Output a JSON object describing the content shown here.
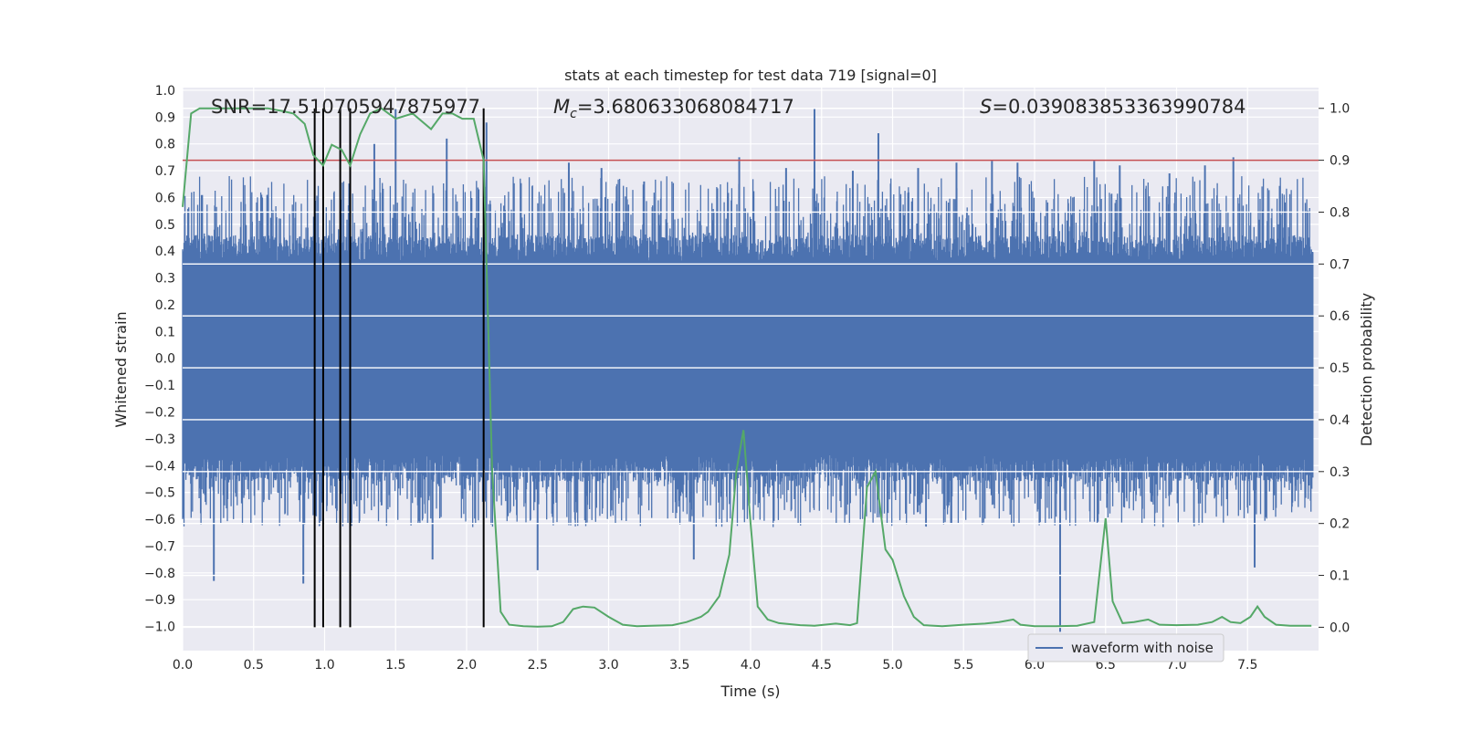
{
  "chart_data": {
    "type": "line",
    "title": "stats at each timestep for test data 719 [signal=0]",
    "xlabel": "Time (s)",
    "ylabel_left": "Whitened strain",
    "ylabel_right": "Detection probability",
    "xlim": [
      0.0,
      8.0
    ],
    "ylim_left": [
      -1.09,
      1.01
    ],
    "ylim_right": [
      -0.045,
      1.04
    ],
    "xticks": [
      "0.0",
      "0.5",
      "1.0",
      "1.5",
      "2.0",
      "2.5",
      "3.0",
      "3.5",
      "4.0",
      "4.5",
      "5.0",
      "5.5",
      "6.0",
      "6.5",
      "7.0",
      "7.5"
    ],
    "xtick_values": [
      0.0,
      0.5,
      1.0,
      1.5,
      2.0,
      2.5,
      3.0,
      3.5,
      4.0,
      4.5,
      5.0,
      5.5,
      6.0,
      6.5,
      7.0,
      7.5
    ],
    "yticks_left": [
      "1.0",
      "0.9",
      "0.8",
      "0.7",
      "0.6",
      "0.5",
      "0.4",
      "0.3",
      "0.2",
      "0.1",
      "0.0",
      "−0.1",
      "−0.2",
      "−0.3",
      "−0.4",
      "−0.5",
      "−0.6",
      "−0.7",
      "−0.8",
      "−0.9",
      "−1.0"
    ],
    "ytick_values_left": [
      1.0,
      0.9,
      0.8,
      0.7,
      0.6,
      0.5,
      0.4,
      0.3,
      0.2,
      0.1,
      0.0,
      -0.1,
      -0.2,
      -0.3,
      -0.4,
      -0.5,
      -0.6,
      -0.7,
      -0.8,
      -0.9,
      -1.0
    ],
    "yticks_right": [
      "1.0",
      "0.9",
      "0.8",
      "0.7",
      "0.6",
      "0.5",
      "0.4",
      "0.3",
      "0.2",
      "0.1",
      "0.0"
    ],
    "ytick_values_right": [
      1.0,
      0.9,
      0.8,
      0.7,
      0.6,
      0.5,
      0.4,
      0.3,
      0.2,
      0.1,
      0.0
    ],
    "annotations": {
      "snr": "SNR=17.510705947875977",
      "mc_symbol": "M",
      "mc_sub": "c",
      "mc_value": "=3.680633068084717",
      "s_symbol": "S",
      "s_value": "=0.039083853363990784"
    },
    "threshold": 0.9,
    "vertical_markers": [
      0.93,
      0.99,
      1.11,
      1.18,
      2.12
    ],
    "waveform": {
      "name": "waveform with noise",
      "color": "#4c72b0",
      "core_amplitude": 0.36,
      "typical_peak": 0.6,
      "spike_times": [
        0.22,
        0.56,
        0.85,
        1.35,
        1.5,
        1.76,
        1.86,
        2.14,
        2.5,
        2.72,
        2.95,
        3.25,
        3.6,
        3.92,
        4.25,
        4.45,
        4.72,
        4.9,
        5.18,
        5.45,
        5.7,
        5.88,
        6.18,
        6.42,
        6.6,
        6.95,
        7.2,
        7.4,
        7.55
      ],
      "spike_values": [
        -0.83,
        0.6,
        -0.84,
        0.8,
        0.93,
        -0.75,
        0.82,
        0.88,
        -0.79,
        0.73,
        0.71,
        0.66,
        -0.75,
        0.75,
        0.71,
        0.93,
        0.7,
        0.84,
        0.71,
        0.73,
        0.74,
        0.73,
        -1.02,
        0.74,
        0.72,
        0.69,
        0.72,
        0.75,
        -0.78
      ]
    },
    "probability": {
      "color": "#55a868",
      "t": [
        0.0,
        0.06,
        0.12,
        0.2,
        0.3,
        0.4,
        0.5,
        0.6,
        0.7,
        0.78,
        0.86,
        0.92,
        0.99,
        1.05,
        1.12,
        1.18,
        1.25,
        1.32,
        1.4,
        1.5,
        1.62,
        1.75,
        1.83,
        1.9,
        1.97,
        2.05,
        2.12,
        2.18,
        2.24,
        2.3,
        2.4,
        2.5,
        2.6,
        2.68,
        2.75,
        2.82,
        2.9,
        3.0,
        3.1,
        3.2,
        3.3,
        3.45,
        3.55,
        3.65,
        3.7,
        3.78,
        3.85,
        3.9,
        3.95,
        4.0,
        4.05,
        4.12,
        4.2,
        4.35,
        4.45,
        4.6,
        4.7,
        4.75,
        4.82,
        4.88,
        4.95,
        5.0,
        5.08,
        5.15,
        5.22,
        5.35,
        5.5,
        5.65,
        5.75,
        5.85,
        5.9,
        6.0,
        6.15,
        6.3,
        6.42,
        6.5,
        6.55,
        6.62,
        6.7,
        6.8,
        6.88,
        7.0,
        7.15,
        7.25,
        7.32,
        7.38,
        7.45,
        7.52,
        7.57,
        7.62,
        7.7,
        7.8,
        7.95
      ],
      "p": [
        0.81,
        0.99,
        1.0,
        1.0,
        1.0,
        1.0,
        1.0,
        1.0,
        0.995,
        0.99,
        0.97,
        0.91,
        0.89,
        0.93,
        0.92,
        0.89,
        0.95,
        0.99,
        1.0,
        0.98,
        0.99,
        0.96,
        0.99,
        0.99,
        0.98,
        0.98,
        0.9,
        0.3,
        0.03,
        0.005,
        0.002,
        0.001,
        0.002,
        0.01,
        0.035,
        0.04,
        0.038,
        0.02,
        0.005,
        0.002,
        0.003,
        0.004,
        0.01,
        0.02,
        0.03,
        0.06,
        0.14,
        0.3,
        0.38,
        0.2,
        0.04,
        0.015,
        0.008,
        0.004,
        0.003,
        0.007,
        0.004,
        0.008,
        0.27,
        0.3,
        0.15,
        0.13,
        0.06,
        0.02,
        0.004,
        0.002,
        0.005,
        0.007,
        0.01,
        0.015,
        0.005,
        0.002,
        0.002,
        0.003,
        0.01,
        0.21,
        0.05,
        0.008,
        0.01,
        0.015,
        0.005,
        0.004,
        0.005,
        0.01,
        0.02,
        0.01,
        0.008,
        0.02,
        0.04,
        0.02,
        0.005,
        0.003,
        0.003
      ]
    },
    "threshold_color": "#c44e52",
    "legend": {
      "label": "waveform with noise",
      "position": "lower-right"
    }
  }
}
